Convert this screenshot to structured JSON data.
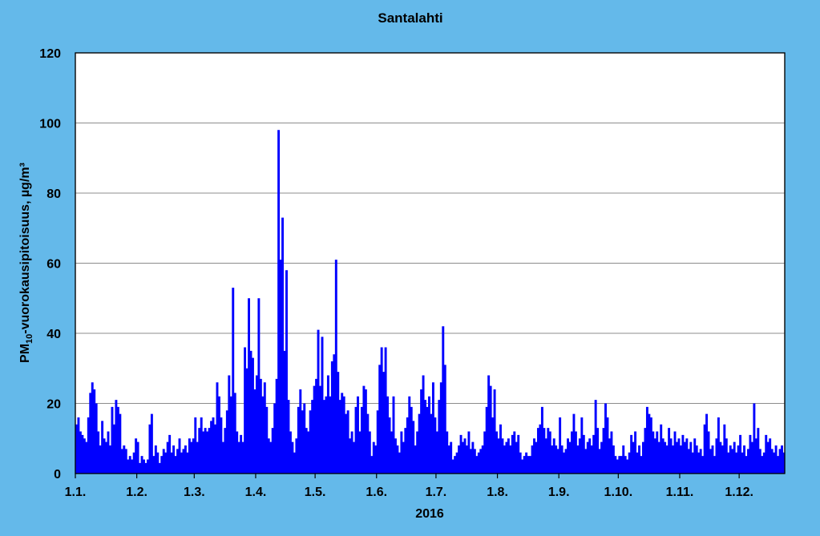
{
  "chart_data": {
    "type": "bar",
    "title": "Santalahti",
    "xlabel": "2016",
    "ylabel": "PM10-vuorokausipitoisuus, µg/m³",
    "ylabel_parts": {
      "pre": "PM",
      "sub": "10",
      "post": "-vuorokausipitoisuus, µg/m³"
    },
    "ylim": [
      0,
      120
    ],
    "yticks": [
      0,
      20,
      40,
      60,
      80,
      100,
      120
    ],
    "grid": true,
    "year": 2016,
    "month_ticks": [
      "1.1.",
      "1.2.",
      "1.3.",
      "1.4.",
      "1.5.",
      "1.6.",
      "1.7.",
      "1.8.",
      "1.9.",
      "1.10.",
      "1.11.",
      "1.12."
    ],
    "series_color": "#0000ff",
    "series": [
      {
        "values": [
          14,
          16,
          12,
          11,
          10,
          9,
          16,
          23,
          26,
          24,
          20,
          12,
          8,
          15,
          10,
          9,
          12,
          8,
          19,
          14,
          21,
          19,
          17,
          7,
          8,
          7,
          4,
          5,
          4,
          6,
          10,
          9,
          3,
          5,
          4,
          3,
          4,
          14,
          17,
          5,
          8,
          6,
          3,
          5,
          7,
          6,
          9,
          11,
          6,
          8,
          5,
          7,
          10,
          6,
          7,
          8,
          6,
          10,
          9,
          10,
          16,
          9,
          13,
          16,
          12,
          13,
          12,
          13,
          15,
          16,
          14,
          26,
          22,
          16,
          9,
          13,
          18,
          28,
          22,
          53,
          23,
          12,
          9,
          11,
          9,
          36,
          30,
          50,
          35,
          33,
          24,
          28,
          50,
          27,
          22,
          26,
          19,
          10,
          9,
          13,
          20,
          27,
          98,
          61,
          73,
          35,
          58,
          21,
          12,
          9,
          6,
          10,
          19,
          24,
          18,
          20,
          13,
          12,
          18,
          21,
          25,
          27,
          41,
          25,
          39,
          21,
          22,
          28,
          22,
          32,
          34,
          61,
          29,
          21,
          23,
          22,
          17,
          18,
          10,
          12,
          9,
          19,
          22,
          12,
          19,
          25,
          24,
          17,
          12,
          5,
          9,
          8,
          18,
          31,
          36,
          29,
          36,
          22,
          16,
          12,
          22,
          10,
          8,
          6,
          12,
          9,
          13,
          16,
          22,
          19,
          15,
          8,
          12,
          17,
          24,
          28,
          21,
          19,
          22,
          17,
          26,
          16,
          12,
          21,
          26,
          42,
          31,
          12,
          8,
          9,
          4,
          5,
          6,
          8,
          11,
          9,
          10,
          8,
          12,
          7,
          9,
          7,
          5,
          6,
          7,
          8,
          12,
          19,
          28,
          25,
          16,
          24,
          12,
          10,
          14,
          10,
          8,
          9,
          10,
          8,
          11,
          12,
          9,
          11,
          6,
          4,
          5,
          6,
          5,
          5,
          8,
          10,
          9,
          13,
          14,
          19,
          13,
          10,
          13,
          12,
          8,
          10,
          8,
          7,
          16,
          8,
          6,
          7,
          10,
          9,
          12,
          17,
          12,
          8,
          10,
          16,
          11,
          7,
          9,
          10,
          8,
          11,
          21,
          13,
          7,
          9,
          13,
          20,
          16,
          10,
          12,
          8,
          5,
          4,
          5,
          5,
          8,
          5,
          4,
          6,
          11,
          9,
          12,
          6,
          8,
          5,
          9,
          13,
          19,
          17,
          16,
          12,
          10,
          12,
          9,
          14,
          10,
          9,
          8,
          13,
          10,
          8,
          12,
          9,
          10,
          8,
          11,
          9,
          10,
          7,
          9,
          6,
          10,
          8,
          6,
          7,
          5,
          14,
          17,
          12,
          7,
          8,
          5,
          10,
          16,
          9,
          8,
          14,
          10,
          6,
          8,
          7,
          9,
          6,
          8,
          11,
          6,
          8,
          5,
          7,
          11,
          9,
          20,
          10,
          13,
          7,
          5,
          6,
          11,
          9,
          10,
          7,
          6,
          8,
          5,
          7,
          8,
          6
        ]
      }
    ]
  }
}
